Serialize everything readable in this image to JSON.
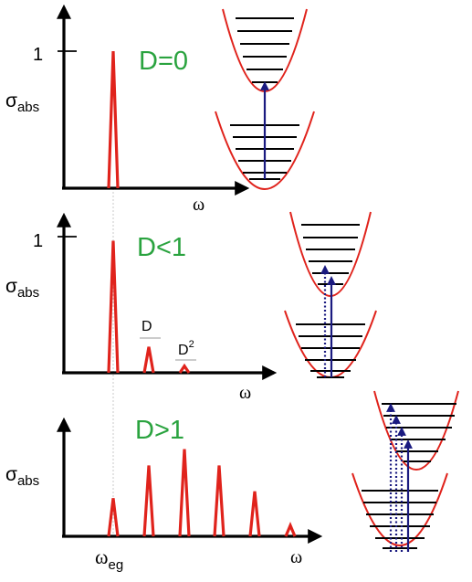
{
  "panels": [
    {
      "id": "p1",
      "regime": "D=0",
      "ylabel_main": "σ",
      "ylabel_sub": "abs",
      "tick_label": "1",
      "xlabel": "ω",
      "peak_heights": [
        1.0
      ],
      "peak_labels": []
    },
    {
      "id": "p2",
      "regime": "D<1",
      "ylabel_main": "σ",
      "ylabel_sub": "abs",
      "tick_label": "1",
      "xlabel": "ω",
      "peak_heights": [
        0.97,
        0.19,
        0.05
      ],
      "peak_labels": [
        {
          "base": "D",
          "sup": ""
        },
        {
          "base": "D",
          "sup": "2"
        }
      ]
    },
    {
      "id": "p3",
      "regime": "D>1",
      "ylabel_main": "σ",
      "ylabel_sub": "abs",
      "tick_label": "",
      "xlabel": "ω",
      "peak_heights": [
        0.28,
        0.52,
        0.64,
        0.52,
        0.33,
        0.08
      ],
      "peak_labels": []
    }
  ],
  "x_marker": {
    "main": "ω",
    "sub": "eg"
  },
  "colors": {
    "axis": "#000000",
    "spectrum": "#e0231c",
    "potential": "#e0231c",
    "levels": "#000000",
    "transition": "#1a1a80",
    "regime_text": "#2aa33f"
  }
}
